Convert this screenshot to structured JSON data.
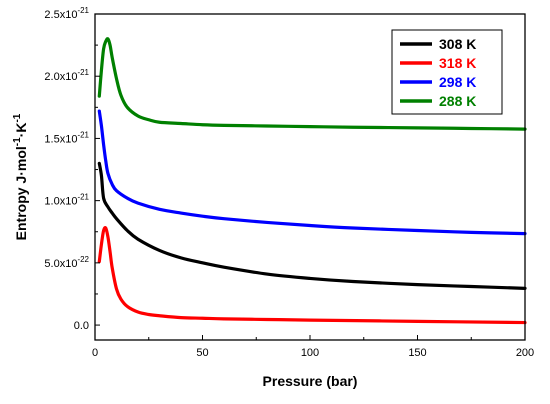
{
  "chart_data": {
    "type": "line",
    "title": "",
    "xlabel": "Pressure (bar)",
    "ylabel": {
      "main": "Entropy J·mol",
      "sup1": "-1",
      "mid": "·K",
      "sup2": "-1"
    },
    "xlim": [
      0,
      200
    ],
    "ylim": [
      -1.2e-22,
      2.5e-21
    ],
    "x_ticks": [
      0,
      50,
      100,
      150,
      200
    ],
    "x_tick_labels": [
      "0",
      "50",
      "100",
      "150",
      "200"
    ],
    "y_ticks": [
      0,
      5e-22,
      1e-21,
      1.5e-21,
      2e-21,
      2.5e-21
    ],
    "y_tick_labels": [
      {
        "base": "0.0",
        "exp": ""
      },
      {
        "base": "5.0x10",
        "exp": "-22"
      },
      {
        "base": "1.0x10",
        "exp": "-21"
      },
      {
        "base": "1.5x10",
        "exp": "-21"
      },
      {
        "base": "2.0x10",
        "exp": "-21"
      },
      {
        "base": "2.5x10",
        "exp": "-21"
      }
    ],
    "grid": false,
    "legend_position": "top-right",
    "series": [
      {
        "name": "308 K",
        "color": "#000000",
        "x": [
          2,
          3,
          4,
          6,
          8,
          10,
          15,
          20,
          30,
          40,
          50,
          60,
          80,
          100,
          120,
          150,
          175,
          200
        ],
        "y": [
          1.3e-21,
          1.2e-21,
          1.02e-21,
          9.5e-22,
          9e-22,
          8.55e-22,
          7.6e-22,
          6.9e-22,
          6e-22,
          5.4e-22,
          5e-22,
          4.65e-22,
          4.1e-22,
          3.75e-22,
          3.5e-22,
          3.25e-22,
          3.1e-22,
          2.95e-22
        ]
      },
      {
        "name": "318 K",
        "color": "#ff0000",
        "x": [
          2,
          3,
          4,
          5,
          6,
          7,
          8,
          10,
          12,
          15,
          20,
          25,
          30,
          40,
          50,
          60,
          80,
          100,
          150,
          200
        ],
        "y": [
          5.1e-22,
          6.5e-22,
          7.6e-22,
          7.8e-22,
          7.1e-22,
          5.9e-22,
          4.6e-22,
          2.9e-22,
          2.1e-22,
          1.5e-22,
          1.05e-22,
          8.5e-23,
          7.5e-23,
          6e-23,
          5.5e-23,
          5e-23,
          4.5e-23,
          4e-23,
          3e-23,
          2e-23
        ]
      },
      {
        "name": "298 K",
        "color": "#0000ff",
        "x": [
          2,
          3,
          4,
          5,
          6,
          8,
          10,
          15,
          20,
          30,
          40,
          50,
          60,
          80,
          100,
          120,
          150,
          175,
          200
        ],
        "y": [
          1.72e-21,
          1.6e-21,
          1.45e-21,
          1.32e-21,
          1.22e-21,
          1.13e-21,
          1.08e-21,
          1.02e-21,
          9.8e-22,
          9.3e-22,
          9e-22,
          8.75e-22,
          8.55e-22,
          8.25e-22,
          8e-22,
          7.8e-22,
          7.6e-22,
          7.45e-22,
          7.35e-22
        ]
      },
      {
        "name": "288 K",
        "color": "#008000",
        "x": [
          2,
          3,
          4,
          5,
          6,
          7,
          8,
          10,
          12,
          15,
          20,
          25,
          30,
          40,
          50,
          60,
          80,
          100,
          120,
          150,
          175,
          200
        ],
        "y": [
          1.84e-21,
          2.05e-21,
          2.22e-21,
          2.28e-21,
          2.3e-21,
          2.25e-21,
          2.15e-21,
          1.98e-21,
          1.85e-21,
          1.75e-21,
          1.68e-21,
          1.65e-21,
          1.63e-21,
          1.62e-21,
          1.61e-21,
          1.605e-21,
          1.6e-21,
          1.595e-21,
          1.59e-21,
          1.585e-21,
          1.58e-21,
          1.575e-21
        ]
      }
    ]
  }
}
